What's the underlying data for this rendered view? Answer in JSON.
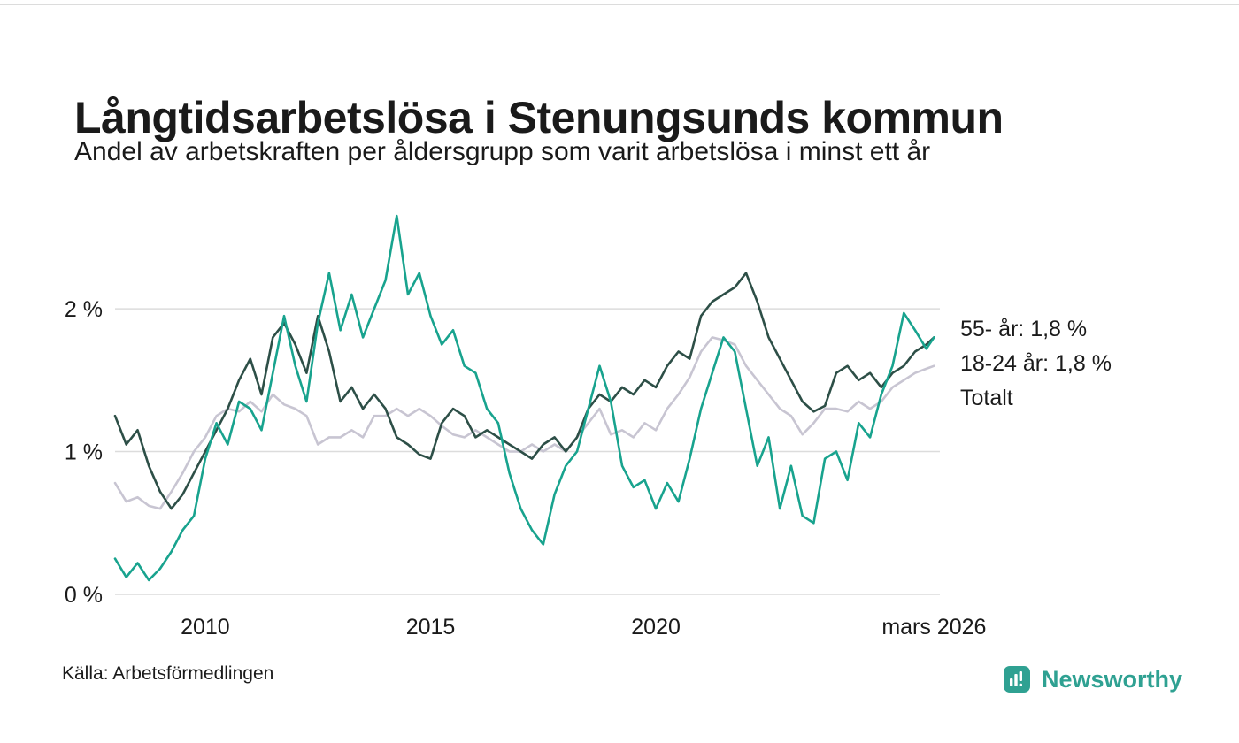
{
  "header": {
    "title": "Långtidsarbetslösa i Stenungsunds kommun",
    "subtitle": "Andel av arbetskraften per åldersgrupp som varit arbetslösa i minst ett år"
  },
  "footer": {
    "source": "Källa: Arbetsförmedlingen",
    "brand": "Newsworthy"
  },
  "colors": {
    "teal_line": "#18a38e",
    "dark_green_line": "#2d4f47",
    "gray_line": "#c8c5d2",
    "grid": "#dcdcdc",
    "brand_teal": "#2fa192",
    "text": "#1a1a1a"
  },
  "chart_data": {
    "type": "line",
    "title": "Långtidsarbetslösa i Stenungsunds kommun",
    "subtitle": "Andel av arbetskraften per åldersgrupp som varit arbetslösa i minst ett år",
    "xlabel": "",
    "ylabel": "",
    "grid": true,
    "legend_position": "right-end-labels",
    "xlim": [
      2008.0,
      2026.3
    ],
    "ylim": [
      0,
      2.75
    ],
    "yticks": [
      {
        "value": 0,
        "label": "0 %"
      },
      {
        "value": 1,
        "label": "1 %"
      },
      {
        "value": 2,
        "label": "2 %"
      }
    ],
    "xticks": [
      {
        "value": 2010,
        "label": "2010"
      },
      {
        "value": 2015,
        "label": "2015"
      },
      {
        "value": 2020,
        "label": "2020"
      },
      {
        "value": 2026.17,
        "label": "mars 2026"
      }
    ],
    "x": [
      2008.0,
      2008.25,
      2008.5,
      2008.75,
      2009.0,
      2009.25,
      2009.5,
      2009.75,
      2010.0,
      2010.25,
      2010.5,
      2010.75,
      2011.0,
      2011.25,
      2011.5,
      2011.75,
      2012.0,
      2012.25,
      2012.5,
      2012.75,
      2013.0,
      2013.25,
      2013.5,
      2013.75,
      2014.0,
      2014.25,
      2014.5,
      2014.75,
      2015.0,
      2015.25,
      2015.5,
      2015.75,
      2016.0,
      2016.25,
      2016.5,
      2016.75,
      2017.0,
      2017.25,
      2017.5,
      2017.75,
      2018.0,
      2018.25,
      2018.5,
      2018.75,
      2019.0,
      2019.25,
      2019.5,
      2019.75,
      2020.0,
      2020.25,
      2020.5,
      2020.75,
      2021.0,
      2021.25,
      2021.5,
      2021.75,
      2022.0,
      2022.25,
      2022.5,
      2022.75,
      2023.0,
      2023.25,
      2023.5,
      2023.75,
      2024.0,
      2024.25,
      2024.5,
      2024.75,
      2025.0,
      2025.25,
      2025.5,
      2025.75,
      2026.0,
      2026.17
    ],
    "series": [
      {
        "id": "totalt",
        "name": "Totalt",
        "end_label": "Totalt",
        "end_value": 1.6,
        "color": "#c8c5d2",
        "values": [
          0.78,
          0.65,
          0.68,
          0.62,
          0.6,
          0.72,
          0.85,
          1.0,
          1.1,
          1.25,
          1.3,
          1.28,
          1.35,
          1.28,
          1.4,
          1.33,
          1.3,
          1.25,
          1.05,
          1.1,
          1.1,
          1.15,
          1.1,
          1.25,
          1.25,
          1.3,
          1.25,
          1.3,
          1.25,
          1.18,
          1.12,
          1.1,
          1.15,
          1.1,
          1.05,
          1.0,
          1.0,
          1.05,
          1.0,
          1.05,
          1.0,
          1.1,
          1.2,
          1.3,
          1.12,
          1.15,
          1.1,
          1.2,
          1.15,
          1.3,
          1.4,
          1.52,
          1.7,
          1.8,
          1.78,
          1.75,
          1.6,
          1.5,
          1.4,
          1.3,
          1.25,
          1.12,
          1.2,
          1.3,
          1.3,
          1.28,
          1.35,
          1.3,
          1.35,
          1.45,
          1.5,
          1.55,
          1.58,
          1.6
        ]
      },
      {
        "id": "55",
        "name": "55- år",
        "end_label": "55- år: 1,8 %",
        "end_value": 1.8,
        "color": "#2d4f47",
        "values": [
          1.25,
          1.05,
          1.15,
          0.9,
          0.72,
          0.6,
          0.7,
          0.85,
          1.0,
          1.15,
          1.3,
          1.5,
          1.65,
          1.4,
          1.8,
          1.9,
          1.75,
          1.55,
          1.95,
          1.7,
          1.35,
          1.45,
          1.3,
          1.4,
          1.3,
          1.1,
          1.05,
          0.98,
          0.95,
          1.2,
          1.3,
          1.25,
          1.1,
          1.15,
          1.1,
          1.05,
          1.0,
          0.95,
          1.05,
          1.1,
          1.0,
          1.1,
          1.3,
          1.4,
          1.35,
          1.45,
          1.4,
          1.5,
          1.45,
          1.6,
          1.7,
          1.65,
          1.95,
          2.05,
          2.1,
          2.15,
          2.25,
          2.05,
          1.8,
          1.65,
          1.5,
          1.35,
          1.28,
          1.32,
          1.55,
          1.6,
          1.5,
          1.55,
          1.45,
          1.55,
          1.6,
          1.7,
          1.75,
          1.8
        ]
      },
      {
        "id": "18-24",
        "name": "18-24 år",
        "end_label": "18-24 år: 1,8 %",
        "end_value": 1.8,
        "color": "#18a38e",
        "values": [
          0.25,
          0.12,
          0.22,
          0.1,
          0.18,
          0.3,
          0.45,
          0.55,
          0.95,
          1.2,
          1.05,
          1.35,
          1.3,
          1.15,
          1.55,
          1.95,
          1.6,
          1.35,
          1.9,
          2.25,
          1.85,
          2.1,
          1.8,
          2.0,
          2.2,
          2.65,
          2.1,
          2.25,
          1.95,
          1.75,
          1.85,
          1.6,
          1.55,
          1.3,
          1.2,
          0.85,
          0.6,
          0.45,
          0.35,
          0.7,
          0.9,
          1.0,
          1.3,
          1.6,
          1.35,
          0.9,
          0.75,
          0.8,
          0.6,
          0.78,
          0.65,
          0.95,
          1.3,
          1.55,
          1.8,
          1.7,
          1.3,
          0.9,
          1.1,
          0.6,
          0.9,
          0.55,
          0.5,
          0.95,
          1.0,
          0.8,
          1.2,
          1.1,
          1.4,
          1.6,
          1.97,
          1.85,
          1.72,
          1.8
        ]
      }
    ]
  }
}
